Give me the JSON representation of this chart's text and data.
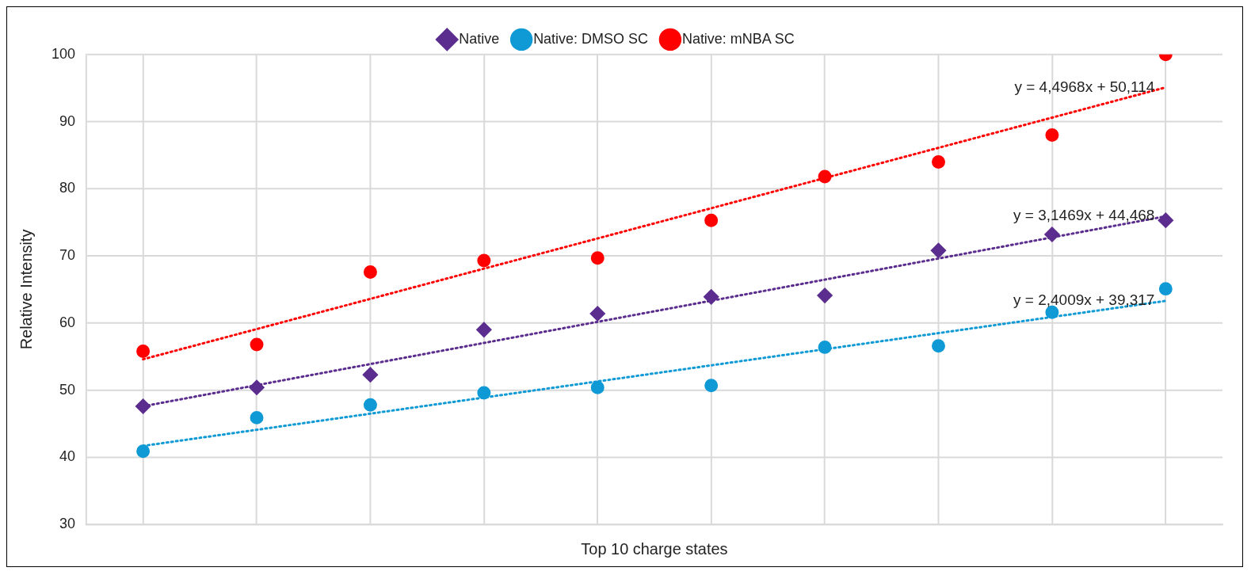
{
  "chart_data": {
    "type": "scatter",
    "xlabel": "Top 10 charge states",
    "ylabel": "Relative Intensity",
    "categories": [
      null,
      null,
      null,
      null,
      null,
      null,
      null,
      null,
      null,
      null
    ],
    "ylim": [
      30,
      100
    ],
    "yticks": [
      30,
      40,
      50,
      60,
      70,
      80,
      90,
      100
    ],
    "tick_labels": "y",
    "grid": true,
    "legend": "top",
    "series": [
      {
        "name": "Native",
        "color": "#5b2d8e",
        "marker": "diamond",
        "values": [
          47.6,
          50.4,
          52.3,
          59.0,
          61.4,
          63.9,
          64.1,
          70.8,
          73.2,
          75.3
        ]
      },
      {
        "name": "Native: DMSO SC",
        "color": "#0f9ad6",
        "marker": "circle",
        "values": [
          40.9,
          45.9,
          47.8,
          49.6,
          50.4,
          50.7,
          56.4,
          56.6,
          61.6,
          65.1
        ]
      },
      {
        "name": "Native: mNBA SC",
        "color": "#ff0000",
        "marker": "circle",
        "values": [
          55.8,
          56.8,
          67.6,
          69.3,
          69.7,
          75.3,
          81.8,
          84.0,
          88.0,
          100
        ]
      },
      {
        "type": "line",
        "color": "#ff0000",
        "marker": "none",
        "line_style": "dotted",
        "values": [
          54.6,
          null,
          null,
          null,
          null,
          null,
          null,
          null,
          null,
          95.1
        ]
      },
      {
        "type": "line",
        "color": "#5b2d8e",
        "marker": "none",
        "line_style": "dotted",
        "values": [
          47.6,
          null,
          null,
          null,
          null,
          null,
          null,
          null,
          null,
          75.9
        ]
      },
      {
        "type": "line",
        "color": "#0f9ad6",
        "marker": "none",
        "line_style": "dotted",
        "values": [
          41.7,
          null,
          null,
          null,
          null,
          null,
          null,
          null,
          null,
          63.3
        ]
      }
    ],
    "annotations": [
      "y = 4,4968x + 50,114",
      "y = 3,1469x + 44,468",
      "y = 2,4009x + 39,317"
    ]
  }
}
